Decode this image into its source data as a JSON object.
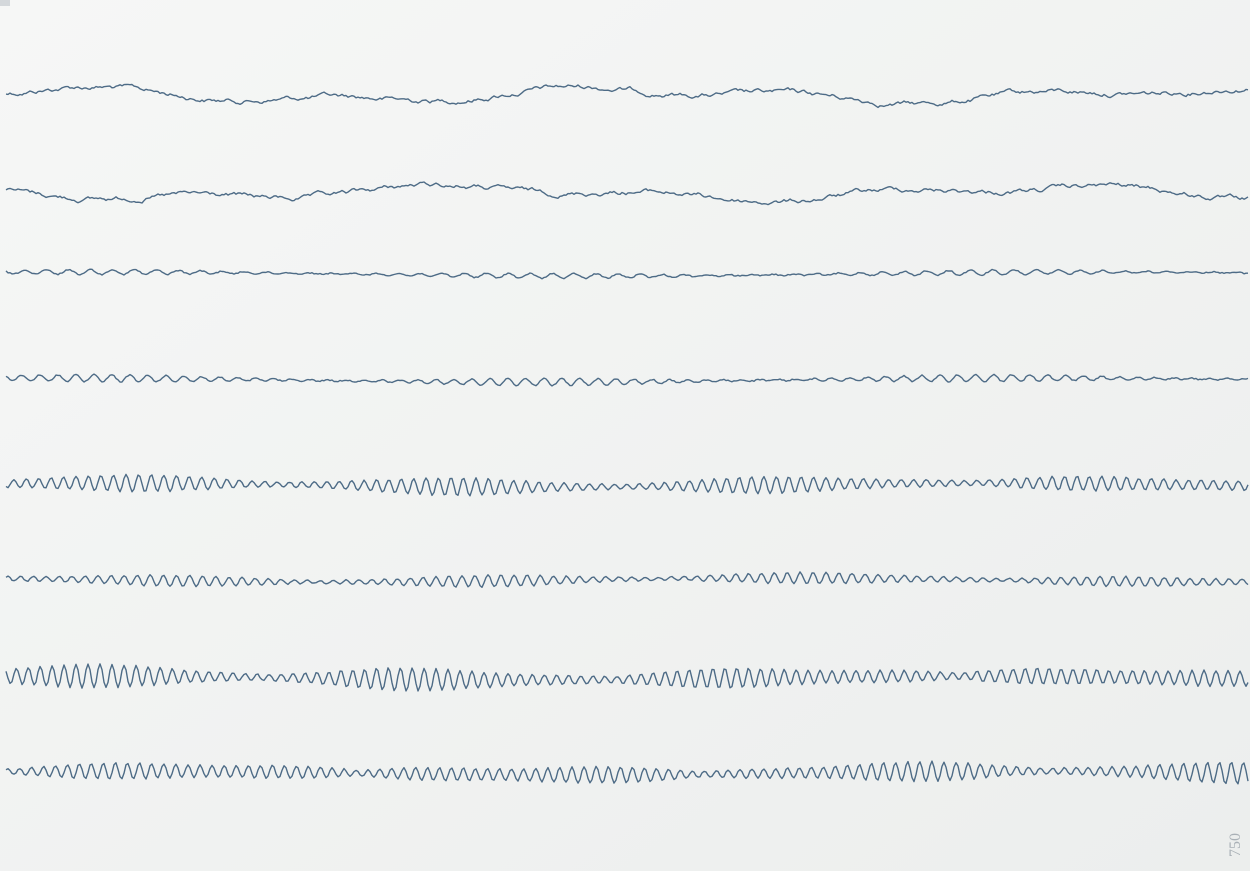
{
  "annotation": "750"
}
